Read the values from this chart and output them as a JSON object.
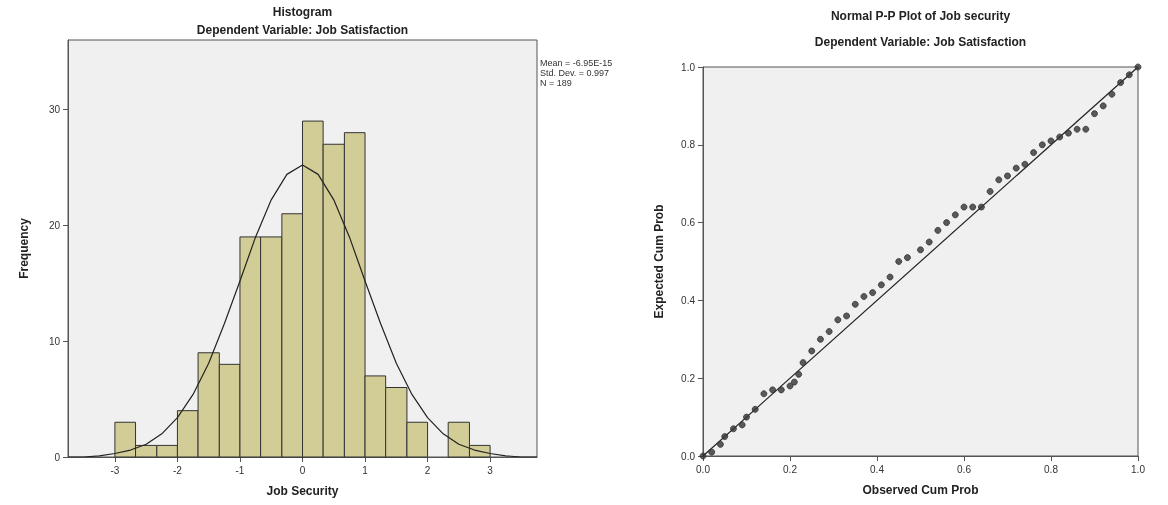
{
  "chart_data": [
    {
      "type": "histogram",
      "title": "Histogram",
      "subtitle": "Dependent Variable: Job Satisfaction",
      "xlabel": "Job Security",
      "ylabel": "Frequency",
      "bins": [
        -3,
        -2.67,
        -2.33,
        -2,
        -1.67,
        -1.33,
        -1,
        -0.67,
        -0.33,
        0,
        0.33,
        0.67,
        1,
        1.33,
        1.67,
        2,
        2.33,
        2.67,
        3
      ],
      "values": [
        3,
        1,
        1,
        4,
        9,
        8,
        19,
        19,
        21,
        29,
        27,
        28,
        7,
        6,
        3,
        0,
        3,
        1
      ],
      "color": "#d2cc96",
      "series": [
        {
          "type": "line",
          "color": "#222222",
          "x": [
            -3.75,
            -3.5,
            -3.25,
            -3,
            -2.75,
            -2.5,
            -2.25,
            -2,
            -1.75,
            -1.5,
            -1.25,
            -1,
            -0.75,
            -0.5,
            -0.25,
            0,
            0.25,
            0.5,
            0.75,
            1,
            1.25,
            1.5,
            1.75,
            2,
            2.25,
            2.5,
            2.75,
            3,
            3.25,
            3.5,
            3.75
          ],
          "values": [
            0,
            0,
            0.1,
            0.3,
            0.6,
            1.1,
            2,
            3.4,
            5.4,
            8.1,
            11.5,
            15.2,
            19,
            22.2,
            24.4,
            25.2,
            24.4,
            22.2,
            19,
            15.2,
            11.5,
            8.1,
            5.4,
            3.4,
            2,
            1.1,
            0.6,
            0.3,
            0.1,
            0,
            0
          ]
        }
      ],
      "xlim": [
        -3.75,
        3.75
      ],
      "xticks": [
        -3,
        -2,
        -1,
        0,
        1,
        2,
        3
      ],
      "ylim": [
        0,
        36
      ],
      "yticks": [
        0,
        10,
        20,
        30
      ],
      "grid": false,
      "annotations": [
        "Mean = -6.95E-15",
        "Std. Dev. = 0.997",
        "N = 189"
      ]
    },
    {
      "type": "scatter",
      "title": "Normal P-P Plot of Job security",
      "subtitle": "Dependent Variable: Job Satisfaction",
      "xlabel": "Observed Cum Prob",
      "ylabel": "Expected Cum Prob",
      "series": [
        {
          "type": "scatter",
          "color": "#333333",
          "marker": "circle",
          "x": [
            0,
            0.02,
            0.04,
            0.05,
            0.07,
            0.09,
            0.1,
            0.12,
            0.14,
            0.16,
            0.18,
            0.2,
            0.21,
            0.22,
            0.23,
            0.25,
            0.27,
            0.29,
            0.31,
            0.33,
            0.35,
            0.37,
            0.39,
            0.41,
            0.43,
            0.45,
            0.47,
            0.5,
            0.52,
            0.54,
            0.56,
            0.58,
            0.6,
            0.62,
            0.64,
            0.66,
            0.68,
            0.7,
            0.72,
            0.74,
            0.76,
            0.78,
            0.8,
            0.82,
            0.84,
            0.86,
            0.88,
            0.9,
            0.92,
            0.94,
            0.96,
            0.98,
            1
          ],
          "values": [
            0,
            0.01,
            0.03,
            0.05,
            0.07,
            0.08,
            0.1,
            0.12,
            0.16,
            0.17,
            0.17,
            0.18,
            0.19,
            0.21,
            0.24,
            0.27,
            0.3,
            0.32,
            0.35,
            0.36,
            0.39,
            0.41,
            0.42,
            0.44,
            0.46,
            0.5,
            0.51,
            0.53,
            0.55,
            0.58,
            0.6,
            0.62,
            0.64,
            0.64,
            0.64,
            0.68,
            0.71,
            0.72,
            0.74,
            0.75,
            0.78,
            0.8,
            0.81,
            0.82,
            0.83,
            0.84,
            0.84,
            0.88,
            0.9,
            0.93,
            0.96,
            0.98,
            1
          ]
        },
        {
          "type": "line",
          "color": "#222222",
          "x": [
            0,
            1
          ],
          "values": [
            0,
            1
          ]
        }
      ],
      "xlim": [
        0,
        1
      ],
      "xticks": [
        {
          "value": 0,
          "label": "0.0"
        },
        {
          "value": 0.2,
          "label": "0.2"
        },
        {
          "value": 0.4,
          "label": "0.4"
        },
        {
          "value": 0.6,
          "label": "0.6"
        },
        {
          "value": 0.8,
          "label": "0.8"
        },
        {
          "value": 1,
          "label": "1.0"
        }
      ],
      "ylim": [
        0,
        1
      ],
      "yticks": [
        {
          "value": 0,
          "label": "0.0"
        },
        {
          "value": 0.2,
          "label": "0.2"
        },
        {
          "value": 0.4,
          "label": "0.4"
        },
        {
          "value": 0.6,
          "label": "0.6"
        },
        {
          "value": 0.8,
          "label": "0.8"
        },
        {
          "value": 1,
          "label": "1.0"
        }
      ],
      "grid": false
    }
  ]
}
